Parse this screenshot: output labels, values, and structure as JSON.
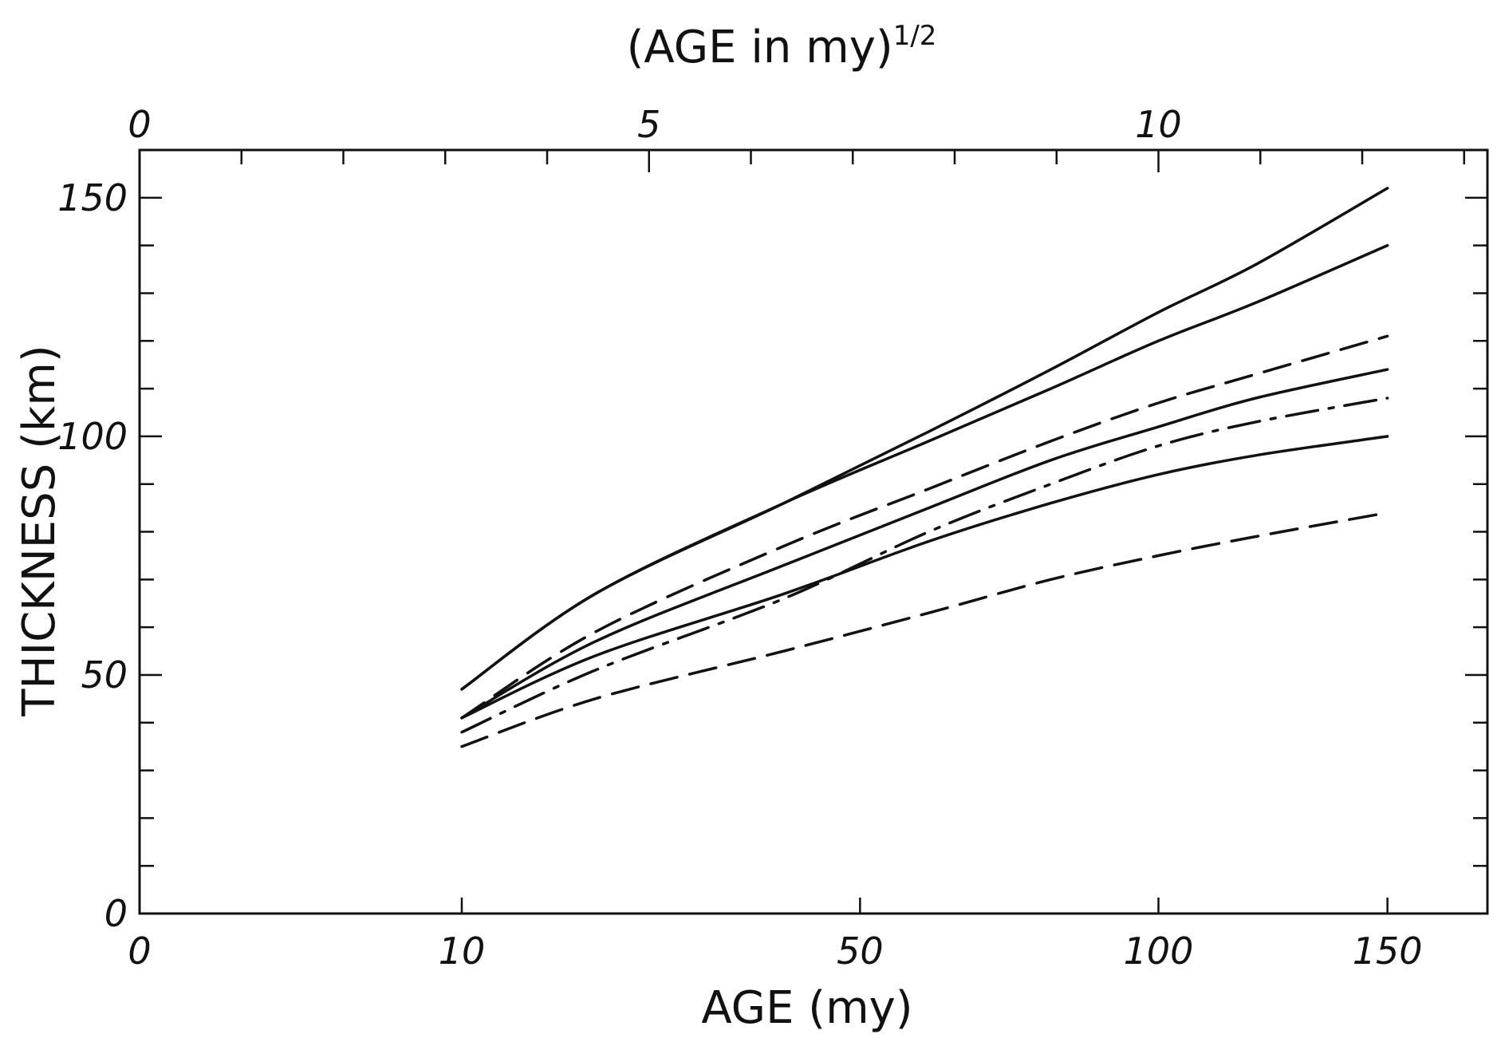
{
  "chart_data": {
    "type": "line",
    "title": "",
    "xlabel": "AGE (my)",
    "ylabel": "THICKNESS (km)",
    "x2label": "(AGE in my)",
    "x2label_exponent": "1/2",
    "x_scale": "sqrt",
    "xlim": [
      0,
      175
    ],
    "ylim": [
      0,
      160
    ],
    "x_ticks": [
      {
        "value": 0,
        "label": "0"
      },
      {
        "value": 10,
        "label": "10"
      },
      {
        "value": 50,
        "label": "50"
      },
      {
        "value": 100,
        "label": "100"
      },
      {
        "value": 150,
        "label": "150"
      }
    ],
    "x2_ticks": [
      {
        "value": 0,
        "label": "0"
      },
      {
        "value": 5,
        "label": "5"
      },
      {
        "value": 10,
        "label": "10"
      }
    ],
    "y_ticks": [
      {
        "value": 0,
        "label": "0"
      },
      {
        "value": 50,
        "label": "50"
      },
      {
        "value": 100,
        "label": "100"
      },
      {
        "value": 150,
        "label": "150"
      }
    ],
    "grid": false,
    "series": [
      {
        "style": "solid",
        "x": [
          10,
          20,
          40,
          60,
          80,
          100,
          120,
          150
        ],
        "y": [
          47,
          67,
          86,
          101,
          114,
          126,
          136,
          152
        ]
      },
      {
        "style": "solid",
        "x": [
          10,
          20,
          40,
          60,
          80,
          100,
          120,
          150
        ],
        "y": [
          47,
          67,
          86,
          99,
          110,
          120,
          128,
          140
        ]
      },
      {
        "style": "dashed",
        "x": [
          10,
          20,
          40,
          60,
          80,
          100,
          120,
          150
        ],
        "y": [
          41,
          59,
          77,
          89,
          99,
          107,
          113,
          121
        ]
      },
      {
        "style": "solid",
        "x": [
          10,
          20,
          40,
          60,
          80,
          100,
          120,
          150
        ],
        "y": [
          41,
          57,
          73,
          85,
          95,
          102,
          108,
          114
        ]
      },
      {
        "style": "dashdot",
        "x": [
          10,
          20,
          40,
          60,
          80,
          100,
          120,
          150
        ],
        "y": [
          38,
          51,
          66,
          80,
          90,
          98,
          103,
          108
        ]
      },
      {
        "style": "solid",
        "x": [
          10,
          20,
          40,
          60,
          80,
          100,
          120,
          150
        ],
        "y": [
          41,
          54,
          67,
          78,
          86,
          92,
          96,
          100
        ]
      },
      {
        "style": "dashed",
        "x": [
          10,
          20,
          40,
          60,
          80,
          100,
          120,
          150
        ],
        "y": [
          35,
          45,
          55,
          63,
          70,
          75,
          79,
          84
        ]
      }
    ]
  }
}
